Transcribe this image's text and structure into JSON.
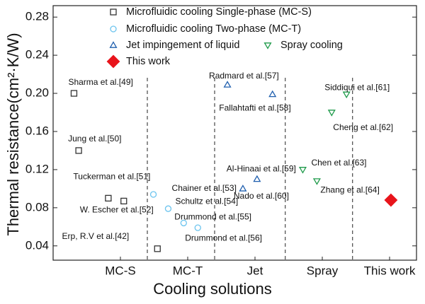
{
  "chart_data": {
    "type": "scatter",
    "x_label": "Cooling solutions",
    "y_label": "Thermal resistance(cm²·K/W)",
    "xlim": [
      0,
      5.4
    ],
    "ylim": [
      0.025,
      0.292
    ],
    "xticks": [
      {
        "value": 1,
        "label": "MC-S"
      },
      {
        "value": 2,
        "label": "MC-T"
      },
      {
        "value": 3,
        "label": "Jet"
      },
      {
        "value": 4,
        "label": "Spray"
      },
      {
        "value": 5,
        "label": "This work"
      }
    ],
    "yticks": [
      0.04,
      0.08,
      0.12,
      0.16,
      {
        "value": 0.2,
        "label": "0.20"
      },
      0.24,
      0.28
    ],
    "dividers": [
      1.4,
      2.4,
      3.45,
      4.45
    ],
    "series": [
      {
        "name": "Microfluidic cooling Single-phase (MC-S)",
        "color": "#333333",
        "marker": "square",
        "filled": false,
        "x": [
          0.31,
          0.38,
          0.82,
          1.05,
          1.55
        ],
        "values": [
          0.2,
          0.14,
          0.09,
          0.087,
          0.037
        ],
        "labels": [
          "Sharma et al.[49]",
          "Jung et al.[50]",
          "Tuckerman et al.[51]",
          "W. Escher et al.[52]",
          "Erp, R.V et al.[42]"
        ]
      },
      {
        "name": "Microfluidic cooling Two-phase (MC-T)",
        "color": "#6cc4ee",
        "marker": "circle",
        "filled": false,
        "x": [
          1.49,
          1.71,
          1.94,
          2.15
        ],
        "values": [
          0.094,
          0.079,
          0.064,
          0.059
        ],
        "labels": [
          "Chainer et al.[53]",
          "Schultz et al.[54]",
          "Drummond et al.[55]",
          "Drummond et al.[56]"
        ]
      },
      {
        "name": "Jet impingement of liquid",
        "color": "#1f5fae",
        "marker": "triangle",
        "filled": false,
        "x": [
          2.59,
          3.26,
          3.03,
          2.82
        ],
        "values": [
          0.209,
          0.199,
          0.11,
          0.1
        ],
        "labels": [
          "Radmard et al.[57]",
          "Fallahtafti et al.[58]",
          "Al-Hinaai et al.[59]",
          "Nado et al.[60]"
        ]
      },
      {
        "name": "Spray cooling",
        "color": "#1e9a4a",
        "marker": "triangle-down",
        "filled": false,
        "x": [
          4.36,
          4.14,
          3.71,
          3.92
        ],
        "values": [
          0.199,
          0.18,
          0.12,
          0.108
        ],
        "labels": [
          "Siddiqui et al.[61]",
          "Cheng et al.[62]",
          "Chen et al.[63]",
          "Zhang et al.[64]"
        ]
      },
      {
        "name": "This work",
        "color": "#e8141b",
        "marker": "diamond",
        "filled": true,
        "x": [
          5.02
        ],
        "values": [
          0.088
        ]
      }
    ]
  }
}
